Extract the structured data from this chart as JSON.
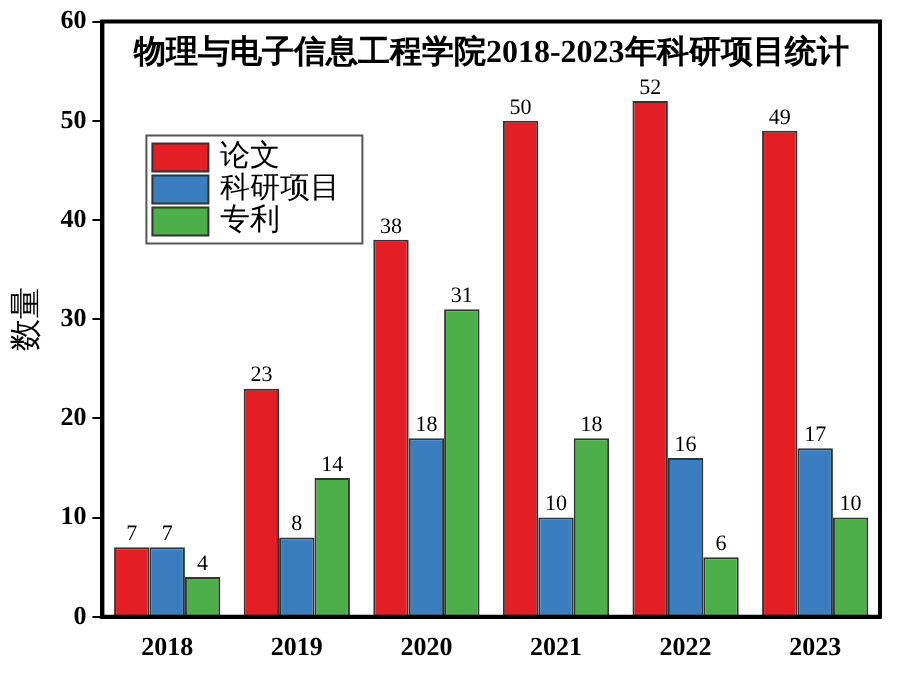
{
  "chart_data": {
    "type": "bar",
    "title": "物理与电子信息工程学院2018-2023年科研项目统计",
    "ylabel": "数量",
    "categories": [
      "2018",
      "2019",
      "2020",
      "2021",
      "2022",
      "2023"
    ],
    "series": [
      {
        "name": "论文",
        "color": "#e31e24",
        "values": [
          7,
          23,
          38,
          50,
          52,
          49
        ]
      },
      {
        "name": "科研项目",
        "color": "#3a7ebf",
        "values": [
          7,
          8,
          18,
          10,
          16,
          17
        ]
      },
      {
        "name": "专利",
        "color": "#4daf4a",
        "values": [
          4,
          14,
          31,
          18,
          6,
          10
        ]
      }
    ],
    "ylim": [
      0,
      60
    ],
    "yticks": [
      0,
      10,
      20,
      30,
      40,
      50,
      60
    ],
    "grid": false,
    "legend": "top left",
    "data_labels": true
  }
}
